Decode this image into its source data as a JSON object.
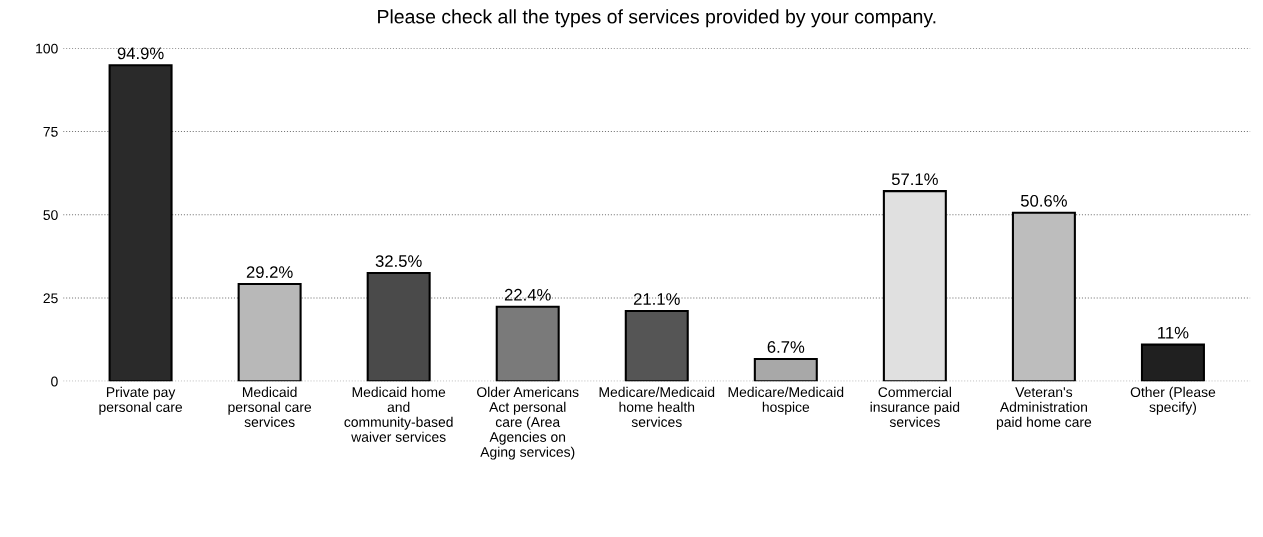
{
  "chart_data": {
    "type": "bar",
    "title": "Please check all the types of services provided by your company.",
    "categories": [
      "Private pay personal care",
      "Medicaid personal care services",
      "Medicaid home and community-based waiver services",
      "Older Americans Act personal care (Area Agencies on Aging services)",
      "Medicare/Medicaid home health services",
      "Medicare/Medicaid hospice",
      "Commercial insurance paid services",
      "Veteran's Administration paid home care",
      "Other (Please specify)"
    ],
    "values": [
      94.9,
      29.2,
      32.5,
      22.4,
      21.1,
      6.7,
      57.1,
      50.6,
      11
    ],
    "value_labels": [
      "94.9%",
      "29.2%",
      "32.5%",
      "22.4%",
      "21.1%",
      "6.7%",
      "57.1%",
      "50.6%",
      "11%"
    ],
    "colors": [
      "#2a2a2a",
      "#b8b8b8",
      "#4a4a4a",
      "#7a7a7a",
      "#555555",
      "#a8a8a8",
      "#e0e0e0",
      "#bdbdbd",
      "#202020"
    ],
    "ylim": [
      0,
      100
    ],
    "yticks": [
      0,
      25,
      50,
      75,
      100
    ],
    "grid": "y"
  }
}
